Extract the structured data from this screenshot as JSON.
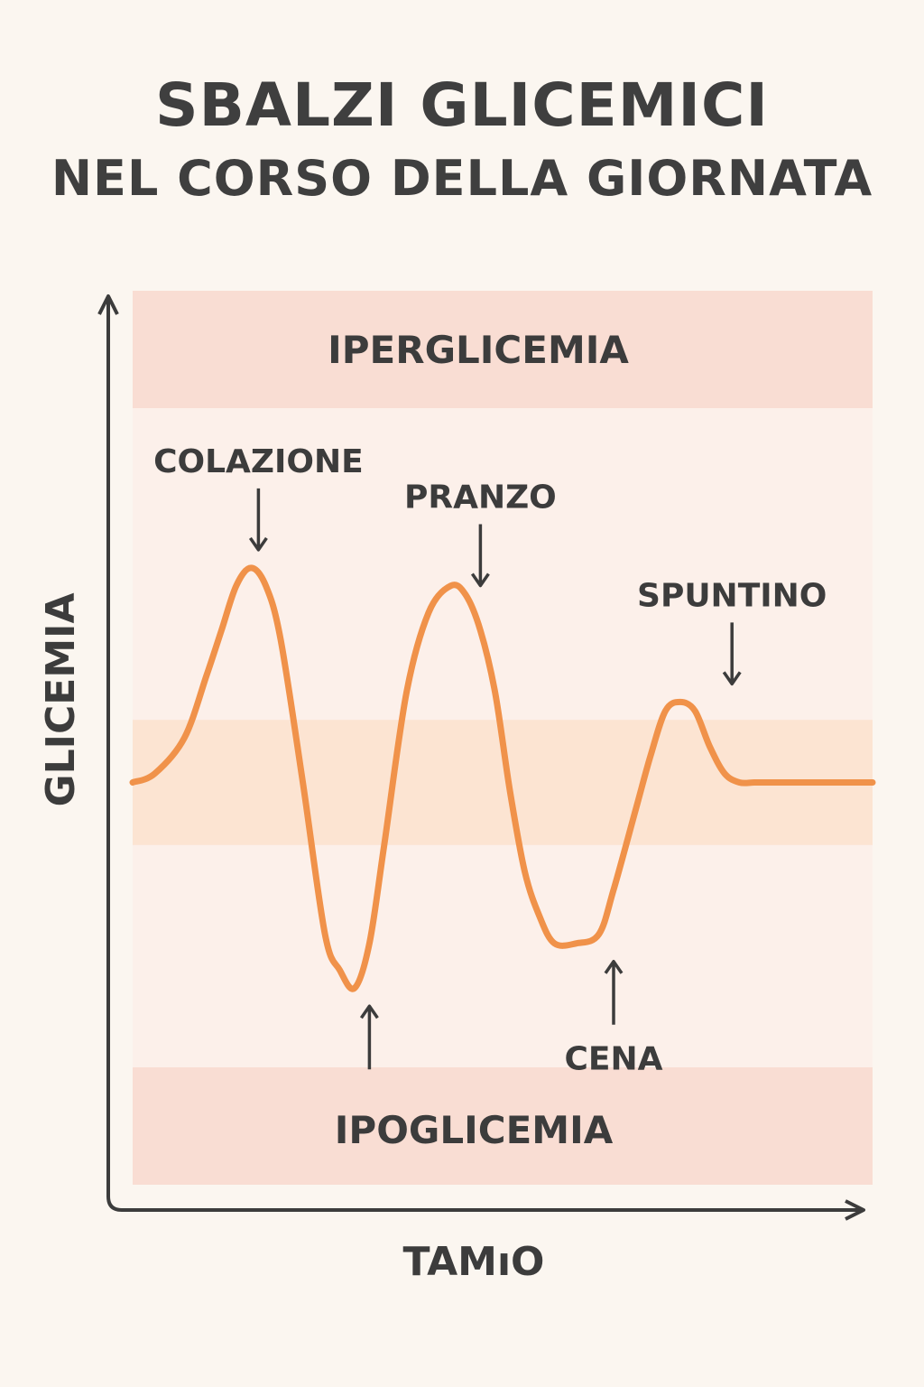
{
  "title": "SBALZI GLICEMICI",
  "subtitle": "NEL CORSO DELLA GIORNATA",
  "colors": {
    "curve": "#f0924a",
    "hyper_zone": "#f9ddd3",
    "hypo_zone": "#f9ddd3",
    "normal_zone": "#fce4d2",
    "chart_bg": "#fcf0ea",
    "axis": "#3c3c3c"
  },
  "chart_data": {
    "type": "line",
    "title": "SBALZI GLICEMICI NEL CORSO DELLA GIORNATA",
    "xlabel": "TAMıO",
    "ylabel": "GLICEMIA",
    "zones": {
      "top": "IPERGLICEMIA",
      "bottom": "IPOGLICEMIA"
    },
    "ylim": [
      0,
      100
    ],
    "xlim": [
      0,
      100
    ],
    "normal_band": [
      38,
      52
    ],
    "series": [
      {
        "values_x": [
          0,
          3,
          7,
          10,
          12,
          14,
          16,
          18,
          20,
          23,
          26,
          28,
          30,
          32,
          34,
          37,
          40,
          43,
          45,
          47,
          49,
          51,
          53,
          55,
          57,
          60,
          63,
          65,
          68,
          70,
          72,
          74,
          76,
          78,
          80,
          82,
          84,
          86,
          88,
          92,
          96,
          100
        ],
        "values_y": [
          45,
          46,
          50,
          57,
          62,
          67,
          69,
          67,
          61,
          45,
          28,
          24,
          22,
          27,
          38,
          55,
          64,
          67,
          66,
          62,
          55,
          44,
          35,
          30,
          27,
          27,
          28,
          33,
          42,
          48,
          53,
          54,
          53,
          49,
          46,
          45,
          45,
          45,
          45,
          45,
          45,
          45
        ]
      }
    ],
    "annotations": [
      {
        "label": "COLAZIONE",
        "x": 17,
        "y": 69,
        "direction": "down"
      },
      {
        "label": "PRANZO",
        "x": 47,
        "y": 65,
        "direction": "down"
      },
      {
        "label": "SPUNTINO",
        "x": 81,
        "y": 54,
        "direction": "down"
      },
      {
        "label": "",
        "x": 32,
        "y": 22,
        "direction": "up"
      },
      {
        "label": "CENA",
        "x": 65,
        "y": 27,
        "direction": "up"
      }
    ]
  }
}
